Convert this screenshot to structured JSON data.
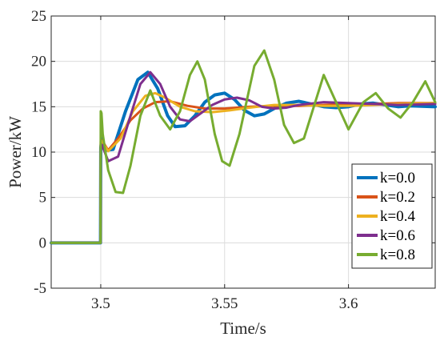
{
  "chart_data": {
    "type": "line",
    "xlabel": "Time/s",
    "ylabel": "Power/kW",
    "xlim": [
      3.48,
      3.635
    ],
    "ylim": [
      -5,
      25
    ],
    "xticks": [
      3.5,
      3.55,
      3.6
    ],
    "xtick_labels": [
      "3.5",
      "3.55",
      "3.6"
    ],
    "yticks": [
      -5,
      0,
      5,
      10,
      15,
      20,
      25
    ],
    "ytick_labels": [
      "-5",
      "0",
      "5",
      "10",
      "15",
      "20",
      "25"
    ],
    "grid": true,
    "legend_position": "bottom-right",
    "series": [
      {
        "name": "k=0.0",
        "color": "#0072BD",
        "x": [
          3.48,
          3.4999,
          3.5,
          3.5005,
          3.502,
          3.505,
          3.51,
          3.515,
          3.519,
          3.523,
          3.527,
          3.53,
          3.534,
          3.538,
          3.542,
          3.546,
          3.55,
          3.554,
          3.558,
          3.562,
          3.566,
          3.57,
          3.575,
          3.58,
          3.585,
          3.59,
          3.595,
          3.6,
          3.605,
          3.61,
          3.615,
          3.62,
          3.625,
          3.635
        ],
        "y": [
          0,
          0,
          10.5,
          11.5,
          10.2,
          10.3,
          14.5,
          18.0,
          18.8,
          17.0,
          14.0,
          12.8,
          12.9,
          14.0,
          15.5,
          16.3,
          16.5,
          15.8,
          14.6,
          14.0,
          14.2,
          14.8,
          15.4,
          15.6,
          15.3,
          15.0,
          14.9,
          15.0,
          15.3,
          15.4,
          15.2,
          15.0,
          15.1,
          15.0
        ]
      },
      {
        "name": "k=0.2",
        "color": "#D95319",
        "x": [
          3.48,
          3.4999,
          3.5,
          3.5005,
          3.503,
          3.507,
          3.512,
          3.517,
          3.522,
          3.528,
          3.535,
          3.542,
          3.55,
          3.56,
          3.57,
          3.58,
          3.59,
          3.6,
          3.61,
          3.62,
          3.635
        ],
        "y": [
          0,
          0,
          11.0,
          11.3,
          10.2,
          11.5,
          13.5,
          14.8,
          15.5,
          15.6,
          15.1,
          14.8,
          14.8,
          15.0,
          15.1,
          15.1,
          15.2,
          15.3,
          15.3,
          15.4,
          15.4
        ]
      },
      {
        "name": "k=0.4",
        "color": "#EDB120",
        "x": [
          3.48,
          3.4999,
          3.5,
          3.5005,
          3.503,
          3.508,
          3.513,
          3.518,
          3.522,
          3.526,
          3.532,
          3.538,
          3.545,
          3.552,
          3.56,
          3.57,
          3.58,
          3.59,
          3.6,
          3.61,
          3.62,
          3.635
        ],
        "y": [
          0,
          0,
          11.2,
          11.2,
          10.1,
          11.5,
          14.5,
          16.2,
          16.5,
          16.0,
          15.0,
          14.5,
          14.4,
          14.6,
          14.9,
          15.2,
          15.2,
          15.1,
          15.1,
          15.2,
          15.3,
          15.4
        ]
      },
      {
        "name": "k=0.6",
        "color": "#7E2F8E",
        "x": [
          3.48,
          3.4999,
          3.5,
          3.5005,
          3.503,
          3.507,
          3.512,
          3.516,
          3.52,
          3.524,
          3.528,
          3.532,
          3.536,
          3.54,
          3.545,
          3.55,
          3.555,
          3.56,
          3.565,
          3.57,
          3.575,
          3.58,
          3.59,
          3.6,
          3.61,
          3.62,
          3.635
        ],
        "y": [
          0,
          0,
          10.8,
          10.8,
          9.0,
          9.5,
          14.0,
          17.5,
          18.8,
          17.5,
          15.0,
          13.6,
          13.4,
          14.2,
          15.2,
          15.8,
          16.0,
          15.7,
          15.0,
          14.8,
          14.9,
          15.2,
          15.5,
          15.4,
          15.3,
          15.2,
          15.3
        ]
      },
      {
        "name": "k=0.8",
        "color": "#77AC30",
        "x": [
          3.48,
          3.4999,
          3.5,
          3.5003,
          3.5008,
          3.503,
          3.506,
          3.509,
          3.512,
          3.516,
          3.52,
          3.524,
          3.528,
          3.532,
          3.536,
          3.539,
          3.542,
          3.546,
          3.549,
          3.552,
          3.556,
          3.562,
          3.566,
          3.57,
          3.574,
          3.578,
          3.582,
          3.586,
          3.59,
          3.595,
          3.6,
          3.606,
          3.611,
          3.616,
          3.621,
          3.626,
          3.631,
          3.635
        ],
        "y": [
          0,
          0,
          14.5,
          14.3,
          12.0,
          8.0,
          5.6,
          5.5,
          8.5,
          14.0,
          16.8,
          14.0,
          12.5,
          14.5,
          18.5,
          20.0,
          18.0,
          12.0,
          9.0,
          8.5,
          12.0,
          19.5,
          21.2,
          18.0,
          13.0,
          11.0,
          11.5,
          15.0,
          18.5,
          15.5,
          12.5,
          15.5,
          16.5,
          14.8,
          13.8,
          15.5,
          17.8,
          15.5
        ]
      }
    ]
  }
}
